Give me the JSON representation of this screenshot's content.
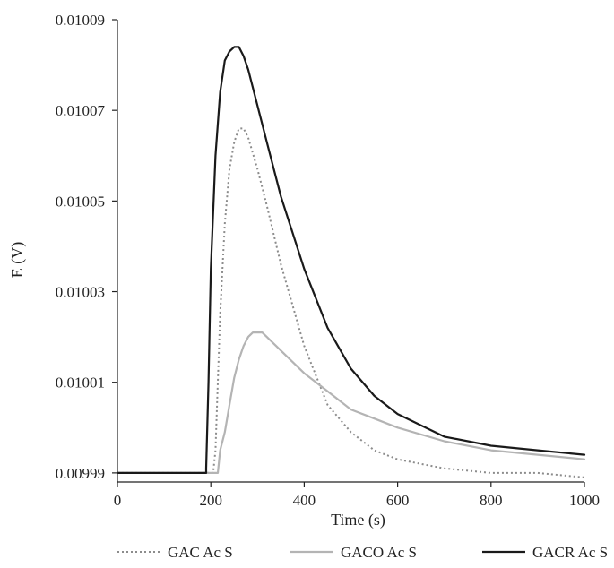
{
  "chart_data": {
    "type": "line",
    "xlabel": "Time (s)",
    "ylabel": "E (V)",
    "xlim": [
      0,
      1000
    ],
    "ylim": [
      0.009988,
      0.01009
    ],
    "xticks": [
      0,
      200,
      400,
      600,
      800,
      1000
    ],
    "xtick_labels": [
      "0",
      "200",
      "400",
      "600",
      "800",
      "1000"
    ],
    "yticks": [
      0.00999,
      0.01001,
      0.01003,
      0.01005,
      0.01007,
      0.01009
    ],
    "ytick_labels": [
      "0.00999",
      "0.01001",
      "0.01003",
      "0.01005",
      "0.01007",
      "0.01009"
    ],
    "grid": false,
    "legend_position": "bottom",
    "series": [
      {
        "name": "GAC Ac S",
        "color": "#8c8c8c",
        "style": "dotted",
        "x": [
          0,
          190,
          205,
          210,
          220,
          230,
          240,
          250,
          260,
          270,
          280,
          300,
          320,
          350,
          400,
          450,
          500,
          550,
          600,
          650,
          700,
          800,
          900,
          1000
        ],
        "y": [
          0.00999,
          0.00999,
          0.00999,
          0.009995,
          0.010025,
          0.010045,
          0.010057,
          0.010063,
          0.010066,
          0.010066,
          0.010064,
          0.010057,
          0.010049,
          0.010036,
          0.010018,
          0.010005,
          0.009999,
          0.009995,
          0.009993,
          0.009992,
          0.009991,
          0.00999,
          0.00999,
          0.009989
        ]
      },
      {
        "name": "GACO Ac S",
        "color": "#b4b4b4",
        "style": "solid",
        "x": [
          0,
          190,
          215,
          220,
          230,
          240,
          250,
          260,
          270,
          280,
          290,
          300,
          310,
          320,
          340,
          360,
          400,
          450,
          500,
          550,
          600,
          700,
          800,
          900,
          1000
        ],
        "y": [
          0.00999,
          0.00999,
          0.00999,
          0.009995,
          0.009999,
          0.010005,
          0.010011,
          0.010015,
          0.010018,
          0.01002,
          0.010021,
          0.010021,
          0.010021,
          0.01002,
          0.010018,
          0.010016,
          0.010012,
          0.010008,
          0.010004,
          0.010002,
          0.01,
          0.009997,
          0.009995,
          0.009994,
          0.009993
        ]
      },
      {
        "name": "GACR Ac S",
        "color": "#1a1a1a",
        "style": "solid",
        "x": [
          0,
          190,
          190,
          195,
          200,
          210,
          220,
          230,
          240,
          250,
          260,
          270,
          280,
          300,
          320,
          350,
          400,
          450,
          500,
          550,
          600,
          700,
          800,
          900,
          1000
        ],
        "y": [
          0.00999,
          0.00999,
          0.009991,
          0.01001,
          0.010035,
          0.01006,
          0.010074,
          0.010081,
          0.010083,
          0.010084,
          0.010084,
          0.010082,
          0.010079,
          0.010071,
          0.010063,
          0.010051,
          0.010035,
          0.010022,
          0.010013,
          0.010007,
          0.010003,
          0.009998,
          0.009996,
          0.009995,
          0.009994
        ]
      }
    ]
  }
}
